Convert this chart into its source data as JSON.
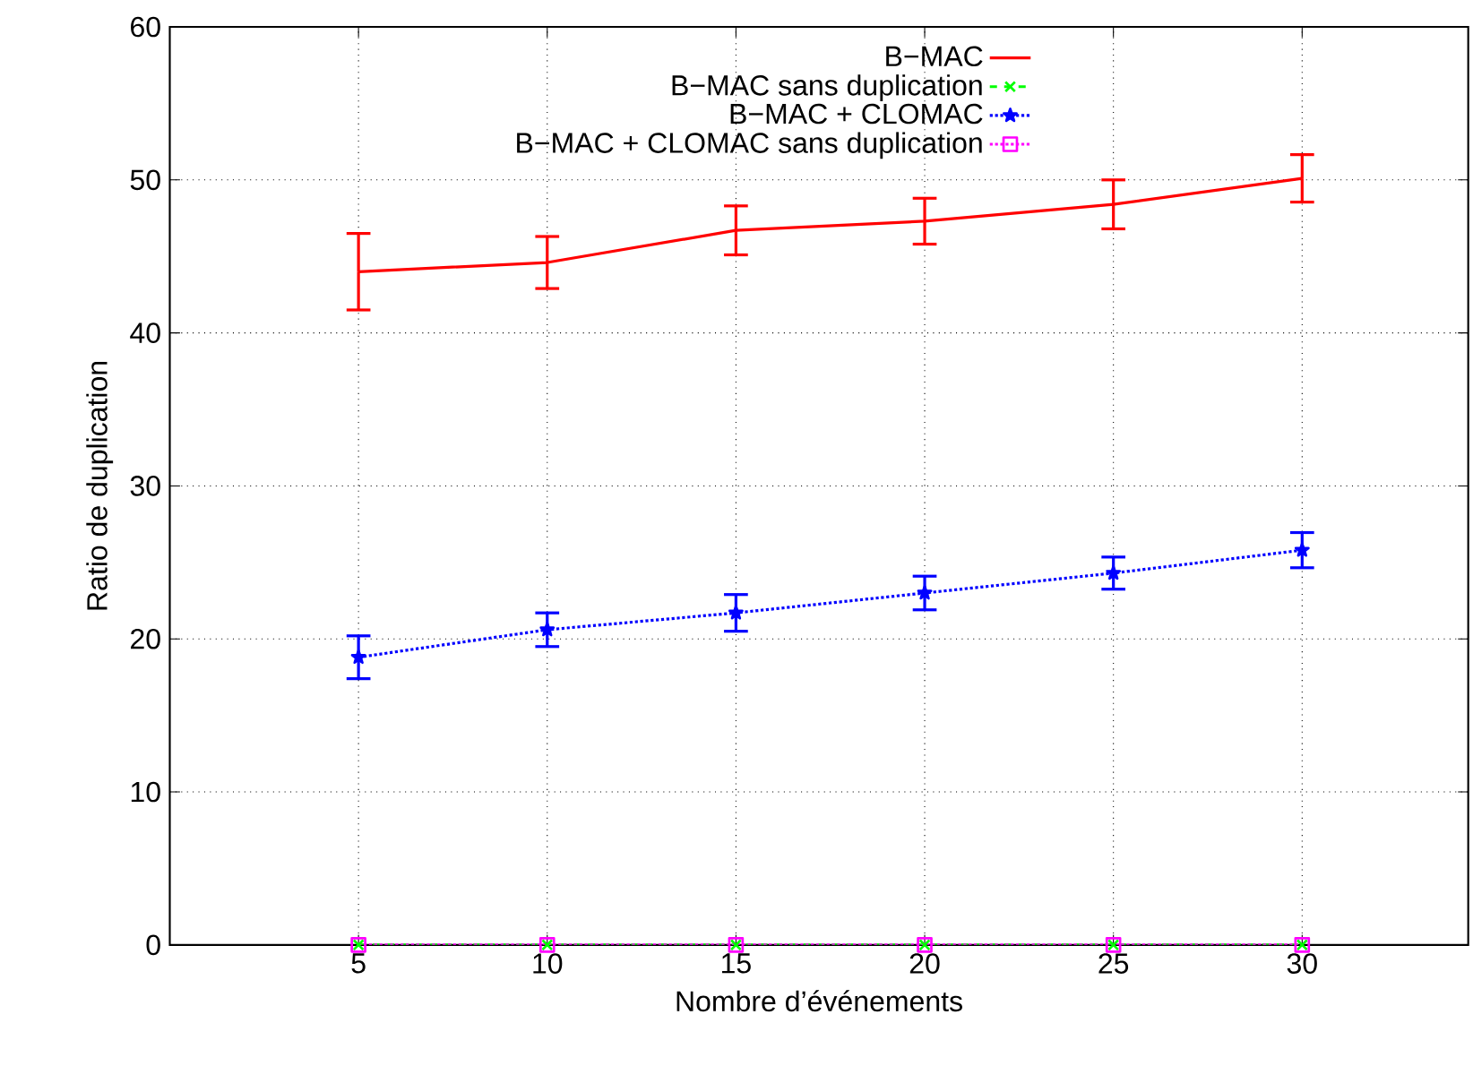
{
  "chart_data": {
    "type": "line",
    "xlabel": "Nombre d’événements",
    "ylabel": "Ratio de duplication",
    "x": [
      5,
      10,
      15,
      20,
      25,
      30
    ],
    "series": [
      {
        "name": "B−MAC",
        "color": "#ff0000",
        "marker": "none",
        "line_style": "solid",
        "values": [
          44.0,
          44.6,
          46.7,
          47.3,
          48.4,
          50.1
        ],
        "errors": [
          2.5,
          1.7,
          1.6,
          1.5,
          1.6,
          1.55
        ]
      },
      {
        "name": "B−MAC sans duplication",
        "color": "#00ff00",
        "marker": "cross",
        "line_style": "dashed",
        "values": [
          0,
          0,
          0,
          0,
          0,
          0
        ]
      },
      {
        "name": "B−MAC + CLOMAC",
        "color": "#0000ff",
        "marker": "star",
        "line_style": "dotted",
        "values": [
          18.8,
          20.6,
          21.7,
          23.0,
          24.3,
          25.8
        ],
        "errors": [
          1.4,
          1.1,
          1.2,
          1.1,
          1.05,
          1.15
        ]
      },
      {
        "name": "B−MAC + CLOMAC sans duplication",
        "color": "#ff00ff",
        "marker": "square",
        "line_style": "dotted",
        "values": [
          0,
          0,
          0,
          0,
          0,
          0
        ]
      }
    ],
    "xlim": [
      0,
      34.4
    ],
    "ylim": [
      0,
      60
    ],
    "xticks": [
      5,
      10,
      15,
      20,
      25,
      30
    ],
    "yticks": [
      0,
      10,
      20,
      30,
      40,
      50,
      60
    ],
    "grid": true,
    "legend": "top right"
  }
}
